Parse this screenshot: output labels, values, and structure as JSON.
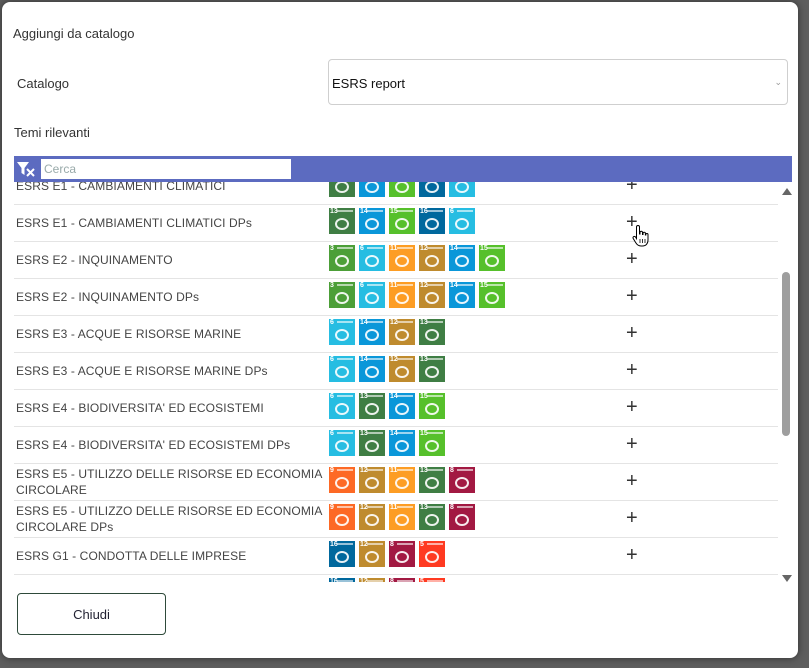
{
  "dialog": {
    "title": "Aggiungi da catalogo",
    "catalog_label": "Catalogo",
    "catalog_value": "ESRS report",
    "section_label": "Temi rilevanti",
    "search_placeholder": "Cerca",
    "close_label": "Chiudi",
    "plus_symbol": "+"
  },
  "sdg_colors": {
    "3": "#4c9f38",
    "6": "#26bde2",
    "8": "#a21942",
    "9": "#fd6925",
    "11": "#fd9d24",
    "12": "#bf8b2e",
    "13": "#3f7e44",
    "14": "#0a97d9",
    "15": "#56c02b",
    "16": "#00689d",
    "5": "#ff3a21"
  },
  "rows": [
    {
      "name": "ESRS E1 - CAMBIAMENTI CLIMATICI",
      "sdgs": [
        13,
        14,
        15,
        16,
        6
      ]
    },
    {
      "name": "ESRS E1 - CAMBIAMENTI CLIMATICI DPs",
      "sdgs": [
        13,
        14,
        15,
        16,
        6
      ]
    },
    {
      "name": "ESRS E2 - INQUINAMENTO",
      "sdgs": [
        3,
        6,
        11,
        12,
        14,
        15
      ]
    },
    {
      "name": "ESRS E2 - INQUINAMENTO DPs",
      "sdgs": [
        3,
        6,
        11,
        12,
        14,
        15
      ]
    },
    {
      "name": "ESRS E3 - ACQUE E RISORSE MARINE",
      "sdgs": [
        6,
        14,
        12,
        13
      ]
    },
    {
      "name": "ESRS E3 - ACQUE E RISORSE MARINE DPs",
      "sdgs": [
        6,
        14,
        12,
        13
      ]
    },
    {
      "name": "ESRS E4 - BIODIVERSITA' ED ECOSISTEMI",
      "sdgs": [
        6,
        13,
        14,
        15
      ]
    },
    {
      "name": "ESRS E4 - BIODIVERSITA' ED ECOSISTEMI DPs",
      "sdgs": [
        6,
        13,
        14,
        15
      ]
    },
    {
      "name": "ESRS E5 - UTILIZZO DELLE RISORSE ED ECONOMIA CIRCOLARE",
      "sdgs": [
        9,
        12,
        11,
        13,
        8
      ]
    },
    {
      "name": "ESRS E5 - UTILIZZO DELLE RISORSE ED ECONOMIA CIRCOLARE DPs",
      "sdgs": [
        9,
        12,
        11,
        13,
        8
      ]
    },
    {
      "name": "ESRS G1 - CONDOTTA DELLE IMPRESE",
      "sdgs": [
        16,
        12,
        8,
        5
      ]
    },
    {
      "name": "",
      "sdgs": [
        16,
        12,
        8,
        5
      ]
    }
  ]
}
